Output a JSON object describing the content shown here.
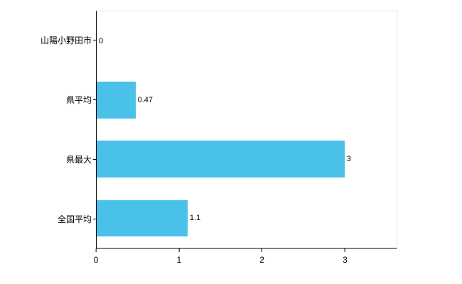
{
  "chart_data": {
    "type": "bar",
    "orientation": "horizontal",
    "categories": [
      "山陽小野田市",
      "県平均",
      "県最大",
      "全国平均"
    ],
    "values": [
      0,
      0.47,
      3,
      1.1
    ],
    "value_labels": [
      "0",
      "0.47",
      "3",
      "1.1"
    ],
    "x_ticks": [
      "0",
      "1",
      "2",
      "3"
    ],
    "x_tick_values": [
      0,
      1,
      2,
      3
    ],
    "xlim": [
      0,
      3.63
    ],
    "title": "",
    "xlabel": "",
    "ylabel": "",
    "grid": false,
    "legend_position": "none",
    "bar_color": "#49c1e8",
    "axis_color": "#000000",
    "frame_color": "#dde4ec",
    "background_color": "#ffffff"
  }
}
